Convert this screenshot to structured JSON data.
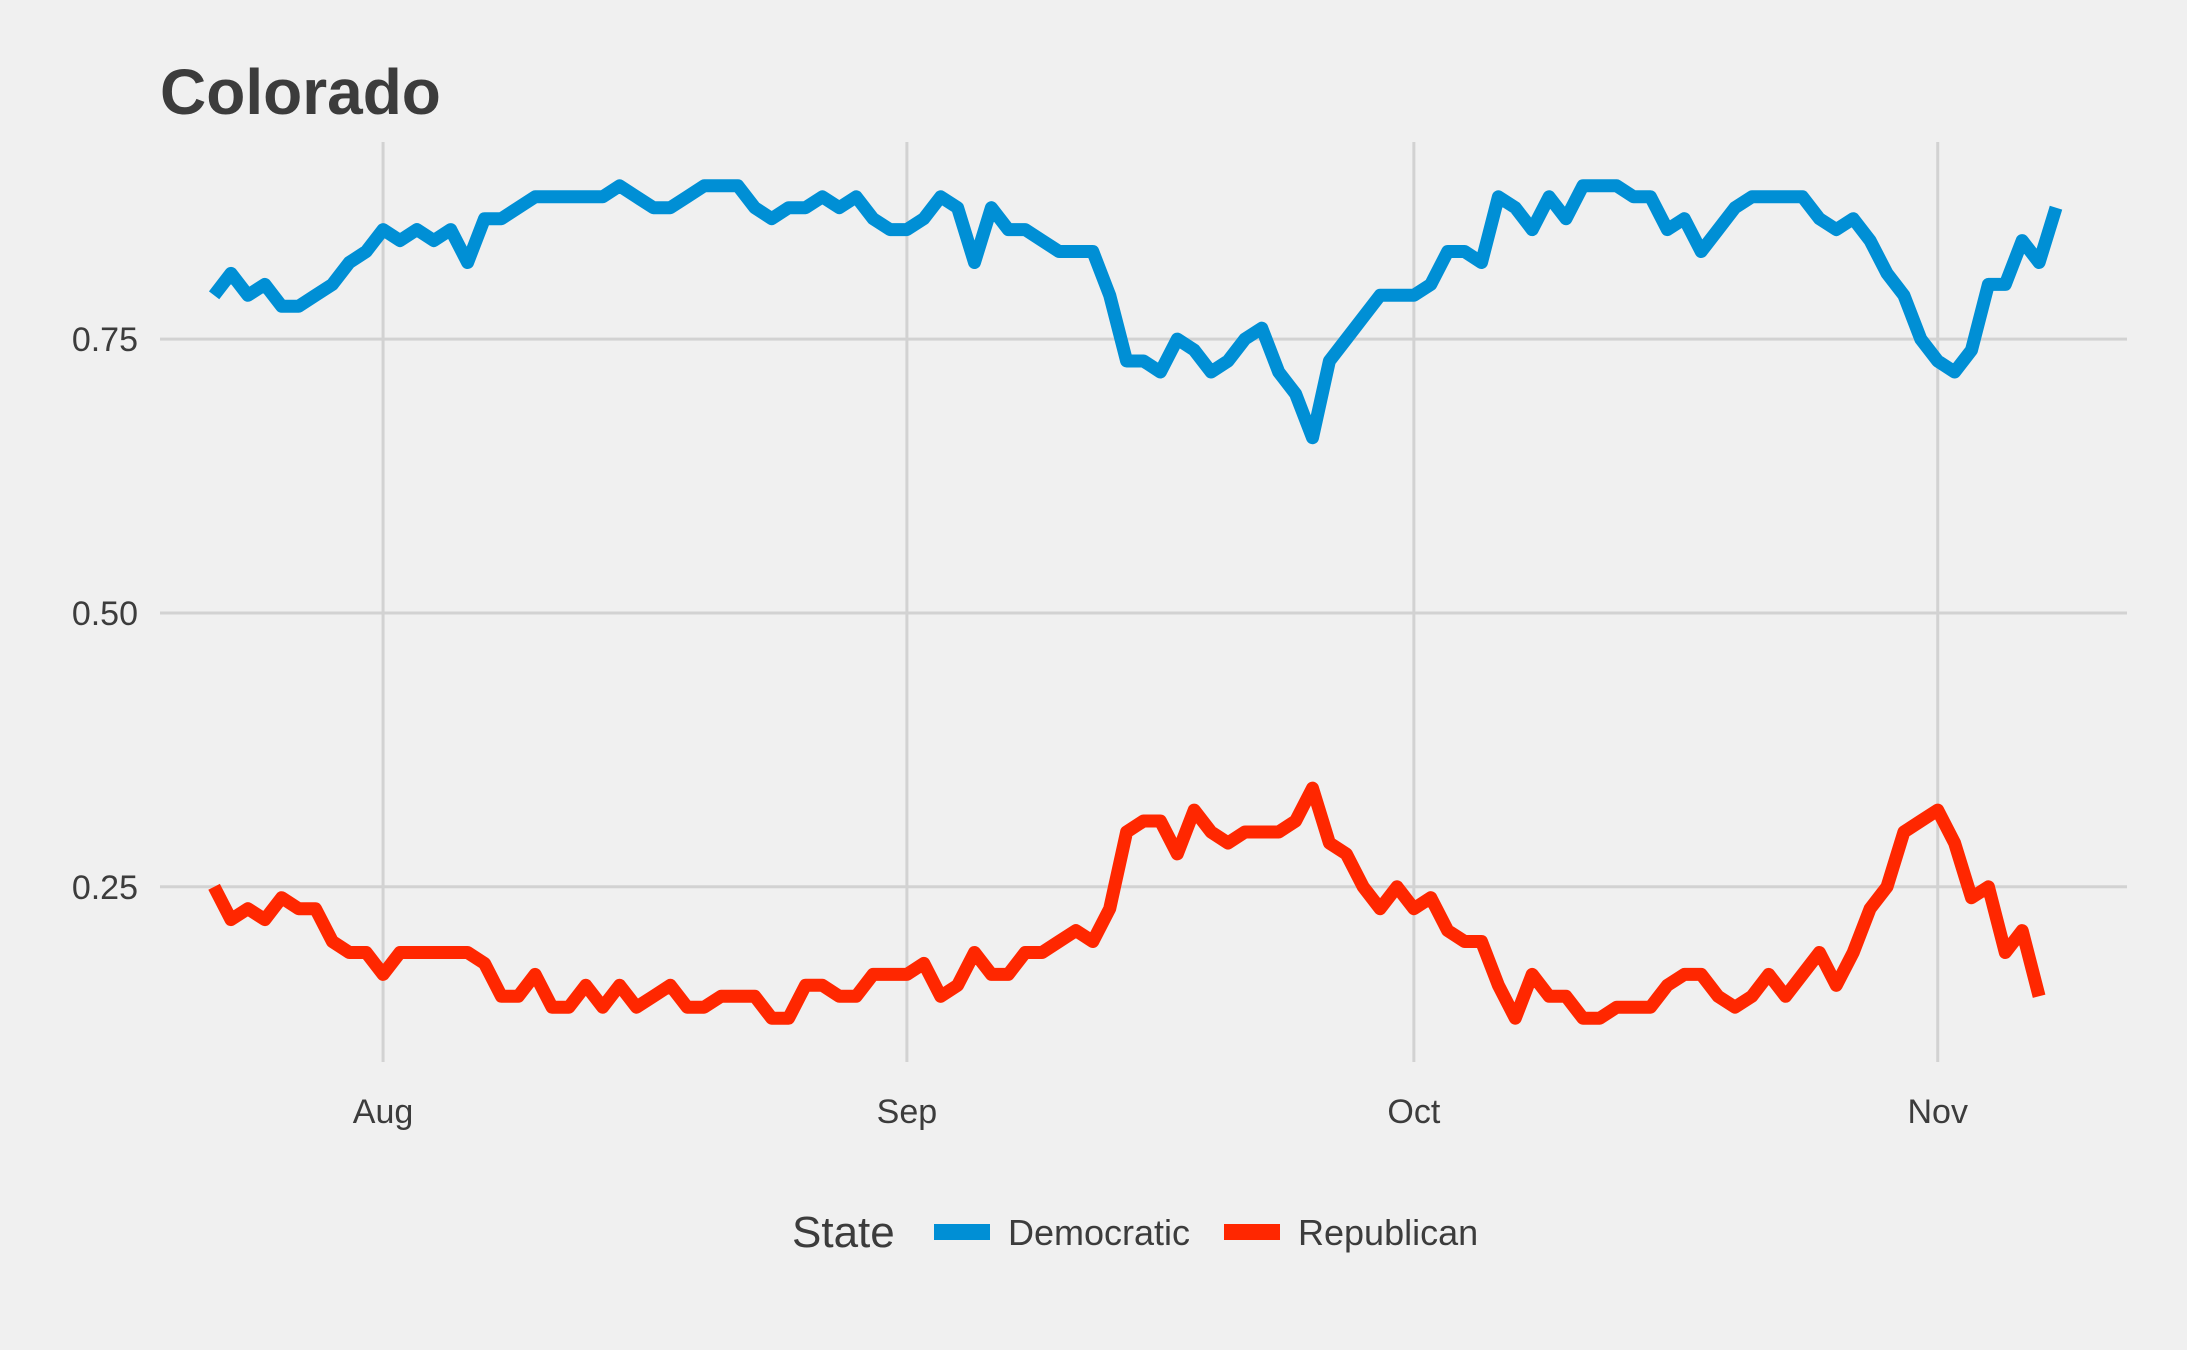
{
  "chart_data": {
    "type": "line",
    "title": "Colorado",
    "xlabel": "",
    "ylabel": "",
    "x_ticks": [
      "Aug",
      "Sep",
      "Oct",
      "Nov"
    ],
    "y_ticks": [
      "0.25",
      "0.50",
      "0.75"
    ],
    "ylim": [
      0.09,
      0.93
    ],
    "grid": true,
    "legend": {
      "title": "State",
      "placement": "bottom",
      "entries": [
        "Democratic",
        "Republican"
      ]
    },
    "colors": {
      "Democratic": "#008fd5",
      "Republican": "#ff2700"
    },
    "series": [
      {
        "name": "Democratic",
        "points": [
          [
            "2016-07-22",
            0.79
          ],
          [
            "2016-07-23",
            0.81
          ],
          [
            "2016-07-24",
            0.79
          ],
          [
            "2016-07-25",
            0.8
          ],
          [
            "2016-07-26",
            0.78
          ],
          [
            "2016-07-27",
            0.78
          ],
          [
            "2016-07-28",
            0.79
          ],
          [
            "2016-07-29",
            0.8
          ],
          [
            "2016-07-30",
            0.82
          ],
          [
            "2016-07-31",
            0.83
          ],
          [
            "2016-08-01",
            0.85
          ],
          [
            "2016-08-02",
            0.84
          ],
          [
            "2016-08-03",
            0.85
          ],
          [
            "2016-08-04",
            0.84
          ],
          [
            "2016-08-05",
            0.85
          ],
          [
            "2016-08-06",
            0.82
          ],
          [
            "2016-08-07",
            0.86
          ],
          [
            "2016-08-08",
            0.86
          ],
          [
            "2016-08-09",
            0.87
          ],
          [
            "2016-08-10",
            0.88
          ],
          [
            "2016-08-11",
            0.88
          ],
          [
            "2016-08-12",
            0.88
          ],
          [
            "2016-08-13",
            0.88
          ],
          [
            "2016-08-14",
            0.88
          ],
          [
            "2016-08-15",
            0.89
          ],
          [
            "2016-08-16",
            0.88
          ],
          [
            "2016-08-17",
            0.87
          ],
          [
            "2016-08-18",
            0.87
          ],
          [
            "2016-08-19",
            0.88
          ],
          [
            "2016-08-20",
            0.89
          ],
          [
            "2016-08-21",
            0.89
          ],
          [
            "2016-08-22",
            0.89
          ],
          [
            "2016-08-23",
            0.87
          ],
          [
            "2016-08-24",
            0.86
          ],
          [
            "2016-08-25",
            0.87
          ],
          [
            "2016-08-26",
            0.87
          ],
          [
            "2016-08-27",
            0.88
          ],
          [
            "2016-08-28",
            0.87
          ],
          [
            "2016-08-29",
            0.88
          ],
          [
            "2016-08-30",
            0.86
          ],
          [
            "2016-08-31",
            0.85
          ],
          [
            "2016-09-01",
            0.85
          ],
          [
            "2016-09-02",
            0.86
          ],
          [
            "2016-09-03",
            0.88
          ],
          [
            "2016-09-04",
            0.87
          ],
          [
            "2016-09-05",
            0.82
          ],
          [
            "2016-09-06",
            0.87
          ],
          [
            "2016-09-07",
            0.85
          ],
          [
            "2016-09-08",
            0.85
          ],
          [
            "2016-09-09",
            0.84
          ],
          [
            "2016-09-10",
            0.83
          ],
          [
            "2016-09-11",
            0.83
          ],
          [
            "2016-09-12",
            0.83
          ],
          [
            "2016-09-13",
            0.79
          ],
          [
            "2016-09-14",
            0.73
          ],
          [
            "2016-09-15",
            0.73
          ],
          [
            "2016-09-16",
            0.72
          ],
          [
            "2016-09-17",
            0.75
          ],
          [
            "2016-09-18",
            0.74
          ],
          [
            "2016-09-19",
            0.72
          ],
          [
            "2016-09-20",
            0.73
          ],
          [
            "2016-09-21",
            0.75
          ],
          [
            "2016-09-22",
            0.76
          ],
          [
            "2016-09-23",
            0.72
          ],
          [
            "2016-09-24",
            0.7
          ],
          [
            "2016-09-25",
            0.66
          ],
          [
            "2016-09-26",
            0.73
          ],
          [
            "2016-09-27",
            0.75
          ],
          [
            "2016-09-28",
            0.77
          ],
          [
            "2016-09-29",
            0.79
          ],
          [
            "2016-09-30",
            0.79
          ],
          [
            "2016-10-01",
            0.79
          ],
          [
            "2016-10-02",
            0.8
          ],
          [
            "2016-10-03",
            0.83
          ],
          [
            "2016-10-04",
            0.83
          ],
          [
            "2016-10-05",
            0.82
          ],
          [
            "2016-10-06",
            0.88
          ],
          [
            "2016-10-07",
            0.87
          ],
          [
            "2016-10-08",
            0.85
          ],
          [
            "2016-10-09",
            0.88
          ],
          [
            "2016-10-10",
            0.86
          ],
          [
            "2016-10-11",
            0.89
          ],
          [
            "2016-10-12",
            0.89
          ],
          [
            "2016-10-13",
            0.89
          ],
          [
            "2016-10-14",
            0.88
          ],
          [
            "2016-10-15",
            0.88
          ],
          [
            "2016-10-16",
            0.85
          ],
          [
            "2016-10-17",
            0.86
          ],
          [
            "2016-10-18",
            0.83
          ],
          [
            "2016-10-19",
            0.85
          ],
          [
            "2016-10-20",
            0.87
          ],
          [
            "2016-10-21",
            0.88
          ],
          [
            "2016-10-22",
            0.88
          ],
          [
            "2016-10-23",
            0.88
          ],
          [
            "2016-10-24",
            0.88
          ],
          [
            "2016-10-25",
            0.86
          ],
          [
            "2016-10-26",
            0.85
          ],
          [
            "2016-10-27",
            0.86
          ],
          [
            "2016-10-28",
            0.84
          ],
          [
            "2016-10-29",
            0.81
          ],
          [
            "2016-10-30",
            0.79
          ],
          [
            "2016-10-31",
            0.75
          ],
          [
            "2016-11-01",
            0.73
          ],
          [
            "2016-11-02",
            0.72
          ],
          [
            "2016-11-03",
            0.74
          ],
          [
            "2016-11-04",
            0.8
          ],
          [
            "2016-11-05",
            0.8
          ],
          [
            "2016-11-06",
            0.84
          ],
          [
            "2016-11-07",
            0.82
          ],
          [
            "2016-11-08",
            0.87
          ]
        ]
      },
      {
        "name": "Republican",
        "points": [
          [
            "2016-07-22",
            0.25
          ],
          [
            "2016-07-23",
            0.22
          ],
          [
            "2016-07-24",
            0.23
          ],
          [
            "2016-07-25",
            0.22
          ],
          [
            "2016-07-26",
            0.24
          ],
          [
            "2016-07-27",
            0.23
          ],
          [
            "2016-07-28",
            0.23
          ],
          [
            "2016-07-29",
            0.2
          ],
          [
            "2016-07-30",
            0.19
          ],
          [
            "2016-07-31",
            0.19
          ],
          [
            "2016-08-01",
            0.17
          ],
          [
            "2016-08-02",
            0.19
          ],
          [
            "2016-08-03",
            0.19
          ],
          [
            "2016-08-04",
            0.19
          ],
          [
            "2016-08-05",
            0.19
          ],
          [
            "2016-08-06",
            0.19
          ],
          [
            "2016-08-07",
            0.18
          ],
          [
            "2016-08-08",
            0.15
          ],
          [
            "2016-08-09",
            0.15
          ],
          [
            "2016-08-10",
            0.17
          ],
          [
            "2016-08-11",
            0.14
          ],
          [
            "2016-08-12",
            0.14
          ],
          [
            "2016-08-13",
            0.16
          ],
          [
            "2016-08-14",
            0.14
          ],
          [
            "2016-08-15",
            0.16
          ],
          [
            "2016-08-16",
            0.14
          ],
          [
            "2016-08-17",
            0.15
          ],
          [
            "2016-08-18",
            0.16
          ],
          [
            "2016-08-19",
            0.14
          ],
          [
            "2016-08-20",
            0.14
          ],
          [
            "2016-08-21",
            0.15
          ],
          [
            "2016-08-22",
            0.15
          ],
          [
            "2016-08-23",
            0.15
          ],
          [
            "2016-08-24",
            0.13
          ],
          [
            "2016-08-25",
            0.13
          ],
          [
            "2016-08-26",
            0.16
          ],
          [
            "2016-08-27",
            0.16
          ],
          [
            "2016-08-28",
            0.15
          ],
          [
            "2016-08-29",
            0.15
          ],
          [
            "2016-08-30",
            0.17
          ],
          [
            "2016-08-31",
            0.17
          ],
          [
            "2016-09-01",
            0.17
          ],
          [
            "2016-09-02",
            0.18
          ],
          [
            "2016-09-03",
            0.15
          ],
          [
            "2016-09-04",
            0.16
          ],
          [
            "2016-09-05",
            0.19
          ],
          [
            "2016-09-06",
            0.17
          ],
          [
            "2016-09-07",
            0.17
          ],
          [
            "2016-09-08",
            0.19
          ],
          [
            "2016-09-09",
            0.19
          ],
          [
            "2016-09-10",
            0.2
          ],
          [
            "2016-09-11",
            0.21
          ],
          [
            "2016-09-12",
            0.2
          ],
          [
            "2016-09-13",
            0.23
          ],
          [
            "2016-09-14",
            0.3
          ],
          [
            "2016-09-15",
            0.31
          ],
          [
            "2016-09-16",
            0.31
          ],
          [
            "2016-09-17",
            0.28
          ],
          [
            "2016-09-18",
            0.32
          ],
          [
            "2016-09-19",
            0.3
          ],
          [
            "2016-09-20",
            0.29
          ],
          [
            "2016-09-21",
            0.3
          ],
          [
            "2016-09-22",
            0.3
          ],
          [
            "2016-09-23",
            0.3
          ],
          [
            "2016-09-24",
            0.31
          ],
          [
            "2016-09-25",
            0.34
          ],
          [
            "2016-09-26",
            0.29
          ],
          [
            "2016-09-27",
            0.28
          ],
          [
            "2016-09-28",
            0.25
          ],
          [
            "2016-09-29",
            0.23
          ],
          [
            "2016-09-30",
            0.25
          ],
          [
            "2016-10-01",
            0.23
          ],
          [
            "2016-10-02",
            0.24
          ],
          [
            "2016-10-03",
            0.21
          ],
          [
            "2016-10-04",
            0.2
          ],
          [
            "2016-10-05",
            0.2
          ],
          [
            "2016-10-06",
            0.16
          ],
          [
            "2016-10-07",
            0.13
          ],
          [
            "2016-10-08",
            0.17
          ],
          [
            "2016-10-09",
            0.15
          ],
          [
            "2016-10-10",
            0.15
          ],
          [
            "2016-10-11",
            0.13
          ],
          [
            "2016-10-12",
            0.13
          ],
          [
            "2016-10-13",
            0.14
          ],
          [
            "2016-10-14",
            0.14
          ],
          [
            "2016-10-15",
            0.14
          ],
          [
            "2016-10-16",
            0.16
          ],
          [
            "2016-10-17",
            0.17
          ],
          [
            "2016-10-18",
            0.17
          ],
          [
            "2016-10-19",
            0.15
          ],
          [
            "2016-10-20",
            0.14
          ],
          [
            "2016-10-21",
            0.15
          ],
          [
            "2016-10-22",
            0.17
          ],
          [
            "2016-10-23",
            0.15
          ],
          [
            "2016-10-24",
            0.17
          ],
          [
            "2016-10-25",
            0.19
          ],
          [
            "2016-10-26",
            0.16
          ],
          [
            "2016-10-27",
            0.19
          ],
          [
            "2016-10-28",
            0.23
          ],
          [
            "2016-10-29",
            0.25
          ],
          [
            "2016-10-30",
            0.3
          ],
          [
            "2016-10-31",
            0.31
          ],
          [
            "2016-11-01",
            0.32
          ],
          [
            "2016-11-02",
            0.29
          ],
          [
            "2016-11-03",
            0.24
          ],
          [
            "2016-11-04",
            0.25
          ],
          [
            "2016-11-05",
            0.19
          ],
          [
            "2016-11-06",
            0.21
          ],
          [
            "2016-11-07",
            0.15
          ]
        ]
      }
    ]
  }
}
